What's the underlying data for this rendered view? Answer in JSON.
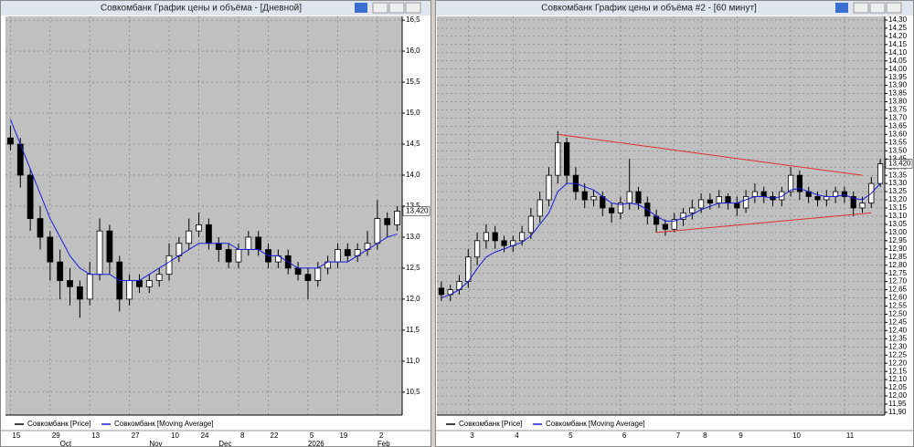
{
  "chart_data": [
    {
      "type": "candlestick",
      "title": "Совкомбанк График цены и объёма - [Дневной]",
      "categories": [
        "15",
        null,
        null,
        null,
        "29",
        null,
        null,
        null,
        "13",
        null,
        null,
        null,
        "27",
        null,
        null,
        null,
        "10",
        null,
        null,
        "24",
        null,
        null,
        null,
        "8",
        null,
        null,
        "22",
        null,
        null,
        null,
        "5",
        null,
        null,
        "19",
        null,
        null,
        null,
        "2",
        null,
        null
      ],
      "months": [
        null,
        null,
        null,
        null,
        null,
        "Oct",
        null,
        null,
        null,
        null,
        null,
        null,
        null,
        null,
        "Nov",
        null,
        null,
        null,
        null,
        null,
        null,
        "Dec",
        null,
        null,
        null,
        null,
        null,
        null,
        null,
        null,
        "2026",
        null,
        null,
        null,
        null,
        null,
        null,
        "Feb",
        null,
        null
      ],
      "series": [
        {
          "name": "Совкомбанк [Price]",
          "color": "#000000",
          "open": [
            14.6,
            14.5,
            14.0,
            13.3,
            13.0,
            12.6,
            12.3,
            12.2,
            12.0,
            12.4,
            13.1,
            12.6,
            12.0,
            12.3,
            12.2,
            12.3,
            12.4,
            12.7,
            12.9,
            13.1,
            13.2,
            12.9,
            12.8,
            12.6,
            12.8,
            13.0,
            12.8,
            12.6,
            12.7,
            12.5,
            12.4,
            12.3,
            12.5,
            12.6,
            12.8,
            12.7,
            12.8,
            12.9,
            13.3,
            13.2
          ],
          "high": [
            14.8,
            14.6,
            14.1,
            13.5,
            13.1,
            12.8,
            12.5,
            12.3,
            12.6,
            13.3,
            13.2,
            12.7,
            12.4,
            12.4,
            12.4,
            12.5,
            12.9,
            13.0,
            13.3,
            13.4,
            13.3,
            13.0,
            12.9,
            12.9,
            13.1,
            13.1,
            12.9,
            12.8,
            12.8,
            12.6,
            12.5,
            12.6,
            12.7,
            12.9,
            12.9,
            12.9,
            13.1,
            13.6,
            13.4,
            13.5
          ],
          "low": [
            14.4,
            13.8,
            13.1,
            12.8,
            12.3,
            12.0,
            11.9,
            11.7,
            11.9,
            12.3,
            12.4,
            11.8,
            11.9,
            12.1,
            12.1,
            12.2,
            12.3,
            12.6,
            12.8,
            13.0,
            12.8,
            12.6,
            12.5,
            12.5,
            12.7,
            12.7,
            12.5,
            12.5,
            12.4,
            12.3,
            12.0,
            12.2,
            12.4,
            12.5,
            12.6,
            12.6,
            12.7,
            12.8,
            13.0,
            13.1
          ],
          "close": [
            14.5,
            14.0,
            13.3,
            13.0,
            12.6,
            12.3,
            12.2,
            12.0,
            12.4,
            13.1,
            12.6,
            12.0,
            12.3,
            12.2,
            12.3,
            12.4,
            12.7,
            12.9,
            13.1,
            13.2,
            12.9,
            12.8,
            12.6,
            12.8,
            13.0,
            12.8,
            12.6,
            12.7,
            12.5,
            12.4,
            12.3,
            12.5,
            12.6,
            12.8,
            12.7,
            12.8,
            12.9,
            13.3,
            13.2,
            13.42
          ]
        },
        {
          "name": "Совкомбанк [Moving Average]",
          "color": "#1a1adc",
          "values": [
            14.9,
            14.5,
            14.1,
            13.7,
            13.3,
            13.0,
            12.7,
            12.5,
            12.4,
            12.4,
            12.4,
            12.3,
            12.3,
            12.3,
            12.4,
            12.5,
            12.6,
            12.7,
            12.8,
            12.9,
            12.9,
            12.9,
            12.9,
            12.8,
            12.8,
            12.8,
            12.7,
            12.7,
            12.6,
            12.5,
            12.5,
            12.5,
            12.6,
            12.6,
            12.6,
            12.7,
            12.8,
            12.9,
            13.0,
            13.05
          ]
        }
      ],
      "ylim": [
        10.13,
        16.56
      ],
      "yticks": [
        {
          "value": 10.5,
          "label": "10,5"
        },
        {
          "value": 11.0,
          "label": "11,0"
        },
        {
          "value": 11.5,
          "label": "11,5"
        },
        {
          "value": 12.0,
          "label": "12,0"
        },
        {
          "value": 12.5,
          "label": "12,5"
        },
        {
          "value": 13.0,
          "label": "13,0"
        },
        {
          "value": 13.5,
          "label": "13,5"
        },
        {
          "value": 14.0,
          "label": "14,0"
        },
        {
          "value": 14.5,
          "label": "14,5"
        },
        {
          "value": 15.0,
          "label": "15,0"
        },
        {
          "value": 15.5,
          "label": "15,5"
        },
        {
          "value": 16.0,
          "label": "16,0"
        },
        {
          "value": 16.5,
          "label": "16,5"
        }
      ],
      "last_price": {
        "value": 13.42,
        "label": "13,420"
      },
      "grid": true
    },
    {
      "type": "candlestick",
      "title": "Совкомбанк График цены и объёма #2 - [60 минут]",
      "categories": [
        null,
        null,
        null,
        "3",
        null,
        null,
        null,
        null,
        "4",
        null,
        null,
        null,
        null,
        null,
        "5",
        null,
        null,
        null,
        null,
        null,
        "6",
        null,
        null,
        null,
        null,
        null,
        "7",
        null,
        null,
        "8",
        null,
        null,
        null,
        "9",
        null,
        null,
        null,
        null,
        null,
        "10",
        null,
        null,
        null,
        null,
        null,
        "11",
        null,
        null,
        null,
        null
      ],
      "series": [
        {
          "name": "Совкомбанк [Price]",
          "color": "#000000",
          "open": [
            12.66,
            12.62,
            12.65,
            12.7,
            12.85,
            12.95,
            13.0,
            12.95,
            12.92,
            12.95,
            13.0,
            13.1,
            13.2,
            13.35,
            13.55,
            13.35,
            13.25,
            13.2,
            13.22,
            13.15,
            13.12,
            13.18,
            13.25,
            13.18,
            13.1,
            13.05,
            13.02,
            13.08,
            13.12,
            13.15,
            13.2,
            13.18,
            13.22,
            13.18,
            13.15,
            13.22,
            13.25,
            13.22,
            13.2,
            13.25,
            13.35,
            13.25,
            13.22,
            13.2,
            13.22,
            13.25,
            13.22,
            13.15,
            13.18,
            13.3
          ],
          "high": [
            12.7,
            12.68,
            12.74,
            12.9,
            13.0,
            13.05,
            13.04,
            12.98,
            12.98,
            13.04,
            13.15,
            13.25,
            13.4,
            13.62,
            13.58,
            13.4,
            13.3,
            13.26,
            13.25,
            13.18,
            13.22,
            13.45,
            13.28,
            13.22,
            13.14,
            13.08,
            13.12,
            13.15,
            13.2,
            13.24,
            13.24,
            13.26,
            13.24,
            13.22,
            13.26,
            13.3,
            13.28,
            13.25,
            13.28,
            13.4,
            13.38,
            13.28,
            13.25,
            13.26,
            13.28,
            13.28,
            13.25,
            13.22,
            13.34,
            13.45
          ],
          "low": [
            12.58,
            12.58,
            12.62,
            12.66,
            12.8,
            12.9,
            12.9,
            12.88,
            12.88,
            12.92,
            12.96,
            13.06,
            13.16,
            13.3,
            13.3,
            13.2,
            13.15,
            13.16,
            13.1,
            13.06,
            13.08,
            13.14,
            13.14,
            13.05,
            13.0,
            12.98,
            13.0,
            13.04,
            13.08,
            13.12,
            13.14,
            13.15,
            13.14,
            13.1,
            13.12,
            13.18,
            13.18,
            13.16,
            13.16,
            13.22,
            13.2,
            13.18,
            13.16,
            13.16,
            13.18,
            13.18,
            13.1,
            13.12,
            13.15,
            13.28
          ],
          "close": [
            12.62,
            12.65,
            12.7,
            12.85,
            12.95,
            13.0,
            12.95,
            12.92,
            12.95,
            13.0,
            13.1,
            13.2,
            13.35,
            13.55,
            13.35,
            13.25,
            13.2,
            13.22,
            13.15,
            13.12,
            13.18,
            13.25,
            13.18,
            13.1,
            13.05,
            13.02,
            13.08,
            13.12,
            13.15,
            13.2,
            13.18,
            13.22,
            13.18,
            13.15,
            13.22,
            13.25,
            13.22,
            13.2,
            13.25,
            13.35,
            13.25,
            13.22,
            13.2,
            13.22,
            13.25,
            13.22,
            13.15,
            13.18,
            13.3,
            13.42
          ]
        },
        {
          "name": "Совкомбанк [Moving Average]",
          "color": "#1a1adc",
          "values": [
            12.6,
            12.62,
            12.65,
            12.7,
            12.78,
            12.85,
            12.88,
            12.9,
            12.92,
            12.94,
            12.98,
            13.05,
            13.12,
            13.25,
            13.3,
            13.3,
            13.28,
            13.26,
            13.22,
            13.18,
            13.17,
            13.18,
            13.17,
            13.14,
            13.1,
            13.07,
            13.07,
            13.09,
            13.11,
            13.14,
            13.16,
            13.18,
            13.18,
            13.18,
            13.2,
            13.22,
            13.22,
            13.21,
            13.22,
            13.26,
            13.27,
            13.25,
            13.23,
            13.22,
            13.22,
            13.23,
            13.21,
            13.2,
            13.24,
            13.3
          ]
        }
      ],
      "ylim": [
        11.883,
        14.322
      ],
      "yticks": [
        {
          "value": 11.9,
          "label": "11,90"
        },
        {
          "value": 11.95,
          "label": "11,95"
        },
        {
          "value": 12.0,
          "label": "12,00"
        },
        {
          "value": 12.05,
          "label": "12,05"
        },
        {
          "value": 12.1,
          "label": "12,10"
        },
        {
          "value": 12.15,
          "label": "12,15"
        },
        {
          "value": 12.2,
          "label": "12,20"
        },
        {
          "value": 12.25,
          "label": "12,25"
        },
        {
          "value": 12.3,
          "label": "12,30"
        },
        {
          "value": 12.35,
          "label": "12,35"
        },
        {
          "value": 12.4,
          "label": "12,40"
        },
        {
          "value": 12.45,
          "label": "12,45"
        },
        {
          "value": 12.5,
          "label": "12,50"
        },
        {
          "value": 12.55,
          "label": "12,55"
        },
        {
          "value": 12.6,
          "label": "12,60"
        },
        {
          "value": 12.65,
          "label": "12,65"
        },
        {
          "value": 12.7,
          "label": "12,70"
        },
        {
          "value": 12.75,
          "label": "12,75"
        },
        {
          "value": 12.8,
          "label": "12,80"
        },
        {
          "value": 12.85,
          "label": "12,85"
        },
        {
          "value": 12.9,
          "label": "12,90"
        },
        {
          "value": 12.95,
          "label": "12,95"
        },
        {
          "value": 13.0,
          "label": "13,00"
        },
        {
          "value": 13.05,
          "label": "13,05"
        },
        {
          "value": 13.1,
          "label": "13,10"
        },
        {
          "value": 13.15,
          "label": "13,15"
        },
        {
          "value": 13.2,
          "label": "13,20"
        },
        {
          "value": 13.25,
          "label": "13,25"
        },
        {
          "value": 13.3,
          "label": "13,30"
        },
        {
          "value": 13.35,
          "label": "13,35"
        },
        {
          "value": 13.4,
          "label": "13,40"
        },
        {
          "value": 13.45,
          "label": "13,45"
        },
        {
          "value": 13.5,
          "label": "13,50"
        },
        {
          "value": 13.55,
          "label": "13,55"
        },
        {
          "value": 13.6,
          "label": "13,60"
        },
        {
          "value": 13.65,
          "label": "13,65"
        },
        {
          "value": 13.7,
          "label": "13,70"
        },
        {
          "value": 13.75,
          "label": "13,75"
        },
        {
          "value": 13.8,
          "label": "13,80"
        },
        {
          "value": 13.85,
          "label": "13,85"
        },
        {
          "value": 13.9,
          "label": "13,90"
        },
        {
          "value": 13.95,
          "label": "13,95"
        },
        {
          "value": 14.0,
          "label": "14,00"
        },
        {
          "value": 14.05,
          "label": "14,05"
        },
        {
          "value": 14.1,
          "label": "14,10"
        },
        {
          "value": 14.15,
          "label": "14,15"
        },
        {
          "value": 14.2,
          "label": "14,20"
        },
        {
          "value": 14.25,
          "label": "14,25"
        },
        {
          "value": 14.3,
          "label": "14,30"
        }
      ],
      "last_price": {
        "value": 13.42,
        "label": "13,420"
      },
      "trendlines": [
        {
          "x": [
            13,
            47
          ],
          "y": [
            13.6,
            13.35
          ],
          "color": "#e03030"
        },
        {
          "x": [
            24,
            48
          ],
          "y": [
            13.0,
            13.12
          ],
          "color": "#e03030"
        }
      ],
      "grid": true
    }
  ]
}
